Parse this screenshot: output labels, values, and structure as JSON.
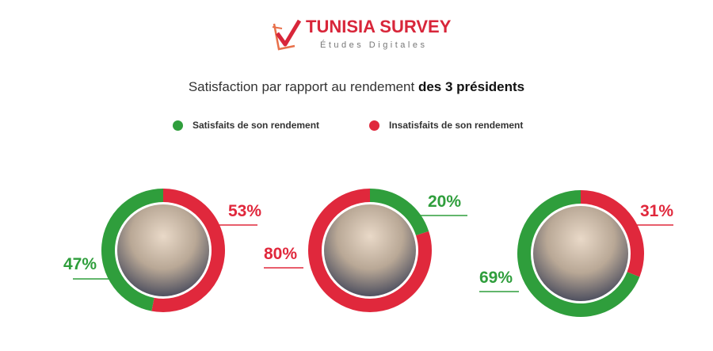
{
  "logo": {
    "name": "TUNISIA SURVEY",
    "tagline": "Études Digitales"
  },
  "title": {
    "normal": "Satisfaction par rapport au rendement ",
    "bold": "des 3 présidents"
  },
  "legend": [
    {
      "label": "Satisfaits de son rendement",
      "color": "#2f9e3c"
    },
    {
      "label": "Insatisfaits de son rendement",
      "color": "#e0283c"
    }
  ],
  "chart_data": {
    "type": "pie",
    "categories": [
      "Satisfaits de son rendement",
      "Insatisfaits de son rendement"
    ],
    "donuts": [
      {
        "satisfied": 47,
        "dissatisfied": 53,
        "satisfied_label": "47%",
        "dissatisfied_label": "53%",
        "start": "dissatisfied"
      },
      {
        "satisfied": 20,
        "dissatisfied": 80,
        "satisfied_label": "20%",
        "dissatisfied_label": "80%",
        "start": "satisfied"
      },
      {
        "satisfied": 69,
        "dissatisfied": 31,
        "satisfied_label": "69%",
        "dissatisfied_label": "31%",
        "start": "dissatisfied"
      }
    ]
  }
}
